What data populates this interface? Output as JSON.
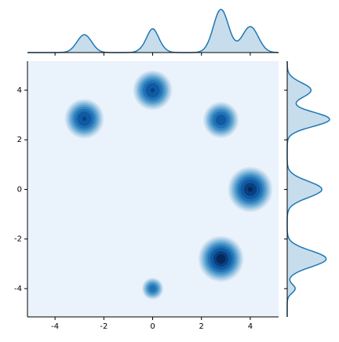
{
  "chart_data": {
    "type": "kde-joint",
    "xlim": [
      -5.13,
      5.16
    ],
    "ylim": [
      -5.14,
      5.17
    ],
    "xticks": [
      -4,
      -2,
      0,
      2,
      4
    ],
    "yticks": [
      -4,
      -2,
      0,
      2,
      4
    ],
    "clusters": [
      {
        "x": -2.8,
        "y": 2.85,
        "sd": 0.3,
        "weight": 0.15
      },
      {
        "x": 0,
        "y": 4,
        "sd": 0.3,
        "weight": 0.15
      },
      {
        "x": 2.8,
        "y": 2.8,
        "sd": 0.28,
        "weight": 0.11
      },
      {
        "x": 4,
        "y": 0,
        "sd": 0.33,
        "weight": 0.24
      },
      {
        "x": 2.8,
        "y": -2.8,
        "sd": 0.33,
        "weight": 0.27
      },
      {
        "x": 0,
        "y": -4,
        "sd": 0.18,
        "weight": 0.03
      }
    ],
    "color": "#1f77b4",
    "background": "#eaf2fb",
    "level_colors": [
      "#d6e6f4",
      "#c0d8ed",
      "#a3cae3",
      "#80b7dc",
      "#5da3d0",
      "#3d8bc3",
      "#2272b5",
      "#0f5aa3",
      "#083f7f",
      "#08285a"
    ]
  }
}
